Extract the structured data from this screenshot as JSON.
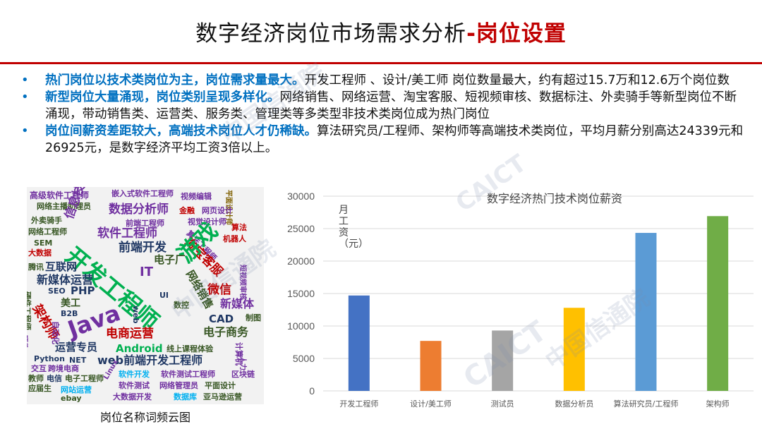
{
  "header": {
    "title_main": "数字经济岗位市场需求分析",
    "title_accent": "-岗位设置",
    "accent_color": "#c00000"
  },
  "bullets": [
    {
      "lead": "热门岗位以技术类岗位为主，岗位需求量最大。",
      "text": "开发工程师 、设计/美工师 岗位数量最大，约有超过15.7万和12.6万个岗位数"
    },
    {
      "lead": "新型岗位大量涌现，岗位类别呈现多样化。",
      "text": "网络销售、网络运营、淘宝客服、短视频审核、数据标注、外卖骑手等新型岗位不断涌现，带动销售类、运营类、服务类、管理类等多类型非技术类岗位成为热门岗位"
    },
    {
      "lead": "岗位间薪资差距较大，高端技术岗位人才仍稀缺。",
      "text": "算法研究员/工程师、架构师等高端技术类岗位，平均月薪分别高达24339元和26925元，是数字经济平均工资3倍以上。"
    }
  ],
  "wordcloud": {
    "caption": "岗位名称词频云图",
    "words": [
      {
        "t": "高级软件工程师",
        "c": "#7030a0"
      },
      {
        "t": "嵌入式软件工程师",
        "c": "#7030a0"
      },
      {
        "t": "视频编辑",
        "c": "#7030a0"
      },
      {
        "t": "平面设计师",
        "c": "#7f6000"
      },
      {
        "t": "网络主播助理员",
        "c": "#375623"
      },
      {
        "t": "数据分析师",
        "c": "#7030a0"
      },
      {
        "t": "金融",
        "c": "#c00000"
      },
      {
        "t": "网页设计",
        "c": "#7030a0"
      },
      {
        "t": "外卖骑手",
        "c": "#375623"
      },
      {
        "t": "前端工程师",
        "c": "#7030a0"
      },
      {
        "t": "视觉设计师",
        "c": "#7030a0"
      },
      {
        "t": "算法",
        "c": "#c00000"
      },
      {
        "t": "网络工程师",
        "c": "#375623"
      },
      {
        "t": "信息技术",
        "c": "#7030a0"
      },
      {
        "t": "软件工程师",
        "c": "#7030a0"
      },
      {
        "t": "算法工程师",
        "c": "#7030a0"
      },
      {
        "t": "机器人",
        "c": "#c00000"
      },
      {
        "t": "SEM",
        "c": "#375623"
      },
      {
        "t": "前端开发",
        "c": "#203864"
      },
      {
        "t": "淘宝客服",
        "c": "#c00000"
      },
      {
        "t": "大数据",
        "c": "#c00000"
      },
      {
        "t": "开发工程师",
        "c": "#00b050"
      },
      {
        "t": "游戏",
        "c": "#00b050"
      },
      {
        "t": "电子厂",
        "c": "#375623"
      },
      {
        "t": "腾讯",
        "c": "#375623"
      },
      {
        "t": "互联网",
        "c": "#203864"
      },
      {
        "t": "IT",
        "c": "#7030a0"
      },
      {
        "t": "新媒体运营",
        "c": "#203864"
      },
      {
        "t": "网络销售",
        "c": "#375623"
      },
      {
        "t": "微信",
        "c": "#c00000"
      },
      {
        "t": "SEO",
        "c": "#203864"
      },
      {
        "t": "PHP",
        "c": "#203864"
      },
      {
        "t": "Java",
        "c": "#7030a0"
      },
      {
        "t": "UI",
        "c": "#203864"
      },
      {
        "t": "新媒体",
        "c": "#7030a0"
      },
      {
        "t": "美工",
        "c": "#375623"
      },
      {
        "t": "CAD",
        "c": "#203864"
      },
      {
        "t": "架构师",
        "c": "#c00000"
      },
      {
        "t": "B2B",
        "c": "#203864"
      },
      {
        "t": "web",
        "c": "#203864"
      },
      {
        "t": "数控",
        "c": "#375623"
      },
      {
        "t": "制图",
        "c": "#375623"
      },
      {
        "t": "电商运营",
        "c": "#c00000"
      },
      {
        "t": "电子商务",
        "c": "#375623"
      },
      {
        "t": "Android",
        "c": "#00b050"
      },
      {
        "t": "运营专员",
        "c": "#203864"
      },
      {
        "t": "线上课程体验",
        "c": "#375623"
      },
      {
        "t": "Python",
        "c": "#203864"
      },
      {
        "t": "web前端开发工程师",
        "c": "#203864"
      },
      {
        "t": "NET",
        "c": "#203864"
      },
      {
        "t": "交互",
        "c": "#7030a0"
      },
      {
        "t": "跨境电商",
        "c": "#7030a0"
      },
      {
        "t": "教师",
        "c": "#375623"
      },
      {
        "t": "电信",
        "c": "#203864"
      },
      {
        "t": "电子工程师",
        "c": "#375623"
      },
      {
        "t": "软件开发",
        "c": "#00b0f0"
      },
      {
        "t": "软件测试工程师",
        "c": "#7030a0"
      },
      {
        "t": "区块链",
        "c": "#7030a0"
      },
      {
        "t": "应届生",
        "c": "#375623"
      },
      {
        "t": "网站运营",
        "c": "#00b0f0"
      },
      {
        "t": "软件测试",
        "c": "#7030a0"
      },
      {
        "t": "网络管理员",
        "c": "#7030a0"
      },
      {
        "t": "平面设计",
        "c": "#375623"
      },
      {
        "t": "ebay",
        "c": "#375623"
      },
      {
        "t": "大数据开发",
        "c": "#7030a0"
      },
      {
        "t": "数据库",
        "c": "#00b0f0"
      },
      {
        "t": "亚马逊运营",
        "c": "#375623"
      },
      {
        "t": "硬件工程师",
        "c": "#375623"
      },
      {
        "t": "自动化",
        "c": "#7030a0"
      },
      {
        "t": "计算机",
        "c": "#7030a0"
      },
      {
        "t": "短视频审核",
        "c": "#7030a0"
      },
      {
        "t": "人力",
        "c": "#7030a0"
      },
      {
        "t": "硬件",
        "c": "#7030a0"
      },
      {
        "t": "Linux",
        "c": "#7030a0"
      }
    ]
  },
  "chart_data": {
    "type": "bar",
    "title": "数字经济热门技术岗位薪资",
    "ylabel": "月工资（元）",
    "xlabel": "",
    "categories": [
      "开发工程师",
      "设计/美工师",
      "测试员",
      "数据分析员",
      "算法研究员/工程师",
      "架构师"
    ],
    "values": [
      14700,
      7700,
      9300,
      12800,
      24339,
      26925
    ],
    "colors": [
      "#4472c4",
      "#ed7d31",
      "#a5a5a5",
      "#ffc000",
      "#5b9bd5",
      "#70ad47"
    ],
    "ylim": [
      0,
      30000
    ],
    "yticks": [
      0,
      5000,
      10000,
      15000,
      20000,
      25000,
      30000
    ],
    "grid": true,
    "legend": "none"
  },
  "watermark": {
    "text": "中国信通院",
    "brand": "CAICT"
  }
}
